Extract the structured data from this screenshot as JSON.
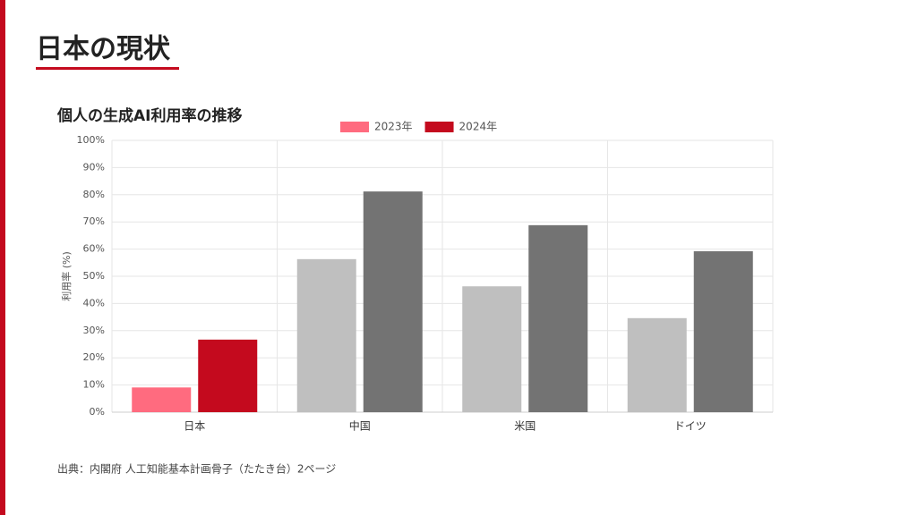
{
  "slide": {
    "title": "日本の現状",
    "source": "出典：内閣府 人工知能基本計画骨子（たたき台）2ページ"
  },
  "chart_data": {
    "type": "bar",
    "title": "個人の生成AI利用率の推移",
    "y_label": "利用率 (%)",
    "categories": [
      "日本",
      "中国",
      "米国",
      "ドイツ"
    ],
    "series": [
      {
        "name": "2023年",
        "color": "#ff6b7f",
        "colors": [
          "#ff6b7f",
          "#bfbfbf",
          "#bfbfbf",
          "#bfbfbf"
        ],
        "values": [
          9.1,
          56.3,
          46.3,
          34.6
        ]
      },
      {
        "name": "2024年",
        "color": "#c40a1e",
        "colors": [
          "#c40a1e",
          "#737373",
          "#737373",
          "#737373"
        ],
        "values": [
          26.7,
          81.2,
          68.8,
          59.2
        ]
      }
    ],
    "ylim": [
      0,
      100
    ],
    "yticks": [
      {
        "value": 0,
        "label": "0%"
      },
      {
        "value": 10,
        "label": "10%"
      },
      {
        "value": 20,
        "label": "20%"
      },
      {
        "value": 30,
        "label": "30%"
      },
      {
        "value": 40,
        "label": "40%"
      },
      {
        "value": 50,
        "label": "50%"
      },
      {
        "value": 60,
        "label": "60%"
      },
      {
        "value": 70,
        "label": "70%"
      },
      {
        "value": 80,
        "label": "80%"
      },
      {
        "value": 90,
        "label": "90%"
      },
      {
        "value": 100,
        "label": "100%"
      }
    ],
    "grid": true,
    "legend": "top"
  }
}
